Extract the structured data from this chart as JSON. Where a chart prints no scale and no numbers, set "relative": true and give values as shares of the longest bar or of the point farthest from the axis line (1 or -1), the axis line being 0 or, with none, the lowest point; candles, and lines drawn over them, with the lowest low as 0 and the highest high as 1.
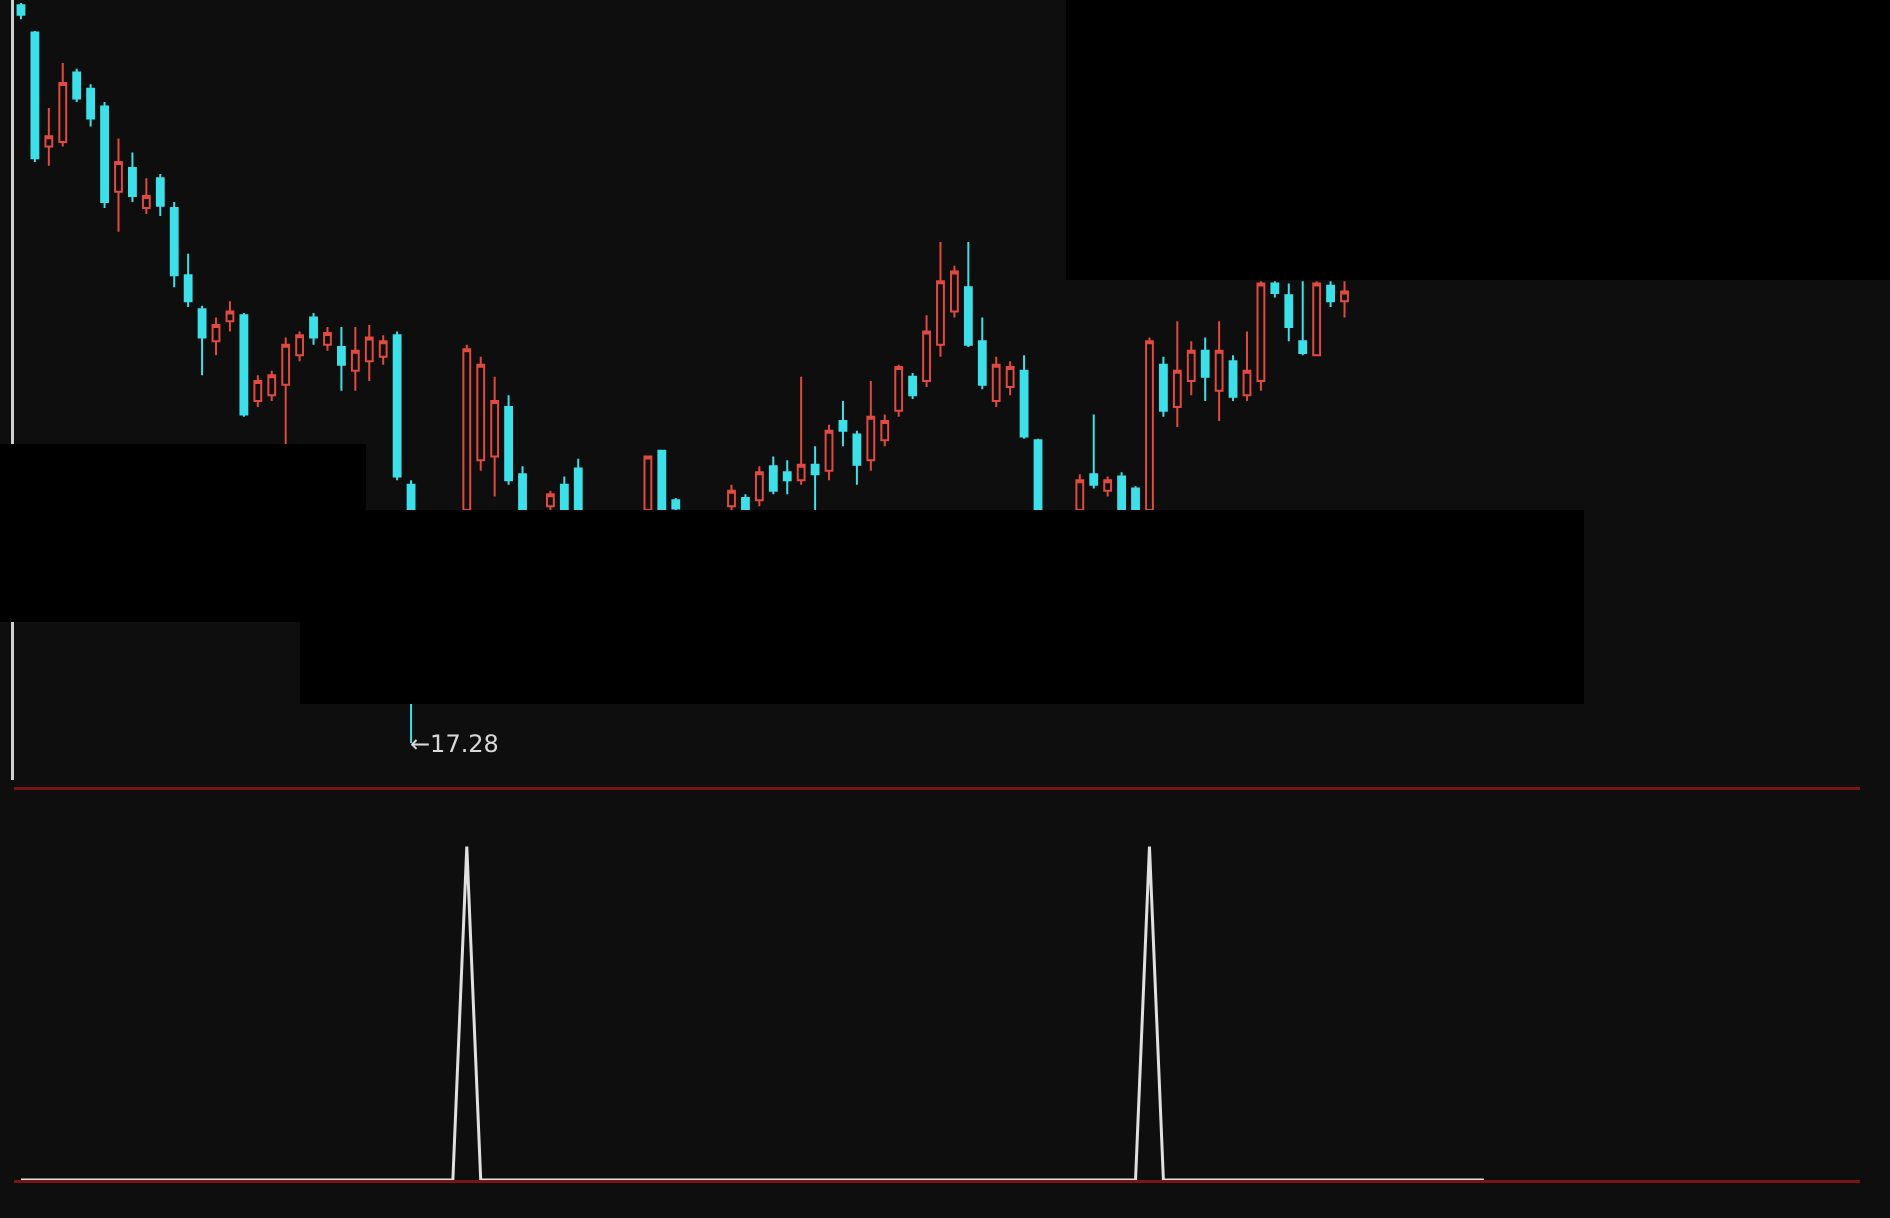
{
  "chart_data": [
    {
      "type": "candlestick",
      "relative": true,
      "categories": [
        null,
        null,
        null,
        null,
        null,
        null,
        null,
        null,
        null,
        null,
        null,
        null,
        null,
        null,
        null,
        null,
        null,
        null,
        null,
        null,
        null,
        null,
        null,
        null,
        null,
        null,
        null,
        null,
        null,
        null,
        null,
        null,
        null,
        null,
        null,
        null,
        null,
        null,
        null,
        null,
        null,
        null,
        null,
        null,
        null,
        null,
        null,
        null,
        null,
        null,
        null,
        null,
        null,
        null,
        null,
        null,
        null,
        null,
        null,
        null,
        null,
        null,
        null,
        null,
        null,
        null,
        null,
        null,
        null,
        null,
        null,
        null,
        null,
        null,
        null,
        null,
        null,
        null,
        null,
        null,
        null,
        null,
        null,
        null,
        null,
        null,
        null,
        null,
        null,
        null,
        null,
        null,
        null,
        null,
        null,
        null,
        null,
        null,
        null,
        null,
        null,
        null,
        null,
        null,
        null,
        null,
        null,
        null,
        null,
        null,
        null,
        null,
        null,
        null,
        null,
        null,
        null,
        null,
        null,
        null,
        null,
        null,
        null,
        null,
        null,
        null,
        null,
        null,
        null,
        null,
        null,
        null
      ],
      "ohlc": [
        [
          0.997,
          1,
          0.978,
          0.984
        ],
        [
          0.96,
          0.962,
          0.785,
          0.79
        ],
        [
          0.806,
          0.858,
          0.78,
          0.82
        ],
        [
          0.812,
          0.919,
          0.806,
          0.892
        ],
        [
          0.906,
          0.911,
          0.866,
          0.871
        ],
        [
          0.884,
          0.89,
          0.833,
          0.844
        ],
        [
          0.86,
          0.866,
          0.723,
          0.731
        ],
        [
          0.745,
          0.817,
          0.691,
          0.785
        ],
        [
          0.777,
          0.798,
          0.731,
          0.739
        ],
        [
          0.723,
          0.763,
          0.715,
          0.739
        ],
        [
          0.763,
          0.769,
          0.712,
          0.726
        ],
        [
          0.723,
          0.731,
          0.616,
          0.632
        ],
        [
          0.632,
          0.661,
          0.589,
          0.597
        ],
        [
          0.586,
          0.591,
          0.497,
          0.548
        ],
        [
          0.543,
          0.575,
          0.524,
          0.565
        ],
        [
          0.57,
          0.597,
          0.556,
          0.583
        ],
        [
          0.578,
          0.581,
          0.441,
          0.444
        ],
        [
          0.462,
          0.497,
          0.454,
          0.489
        ],
        [
          0.47,
          0.503,
          0.462,
          0.497
        ],
        [
          0.484,
          0.548,
          0.403,
          0.538
        ],
        [
          0.524,
          0.556,
          0.516,
          0.551
        ],
        [
          0.575,
          0.581,
          0.538,
          0.548
        ],
        [
          0.538,
          0.562,
          0.53,
          0.554
        ],
        [
          0.535,
          0.562,
          0.476,
          0.511
        ],
        [
          0.503,
          0.562,
          0.476,
          0.53
        ],
        [
          0.516,
          0.565,
          0.489,
          0.548
        ],
        [
          0.522,
          0.551,
          0.511,
          0.543
        ],
        [
          0.551,
          0.556,
          0.355,
          0.36
        ],
        [
          0.349,
          0.355,
          0,
          0.315
        ],
        null,
        null,
        null,
        [
          0.315,
          0.538,
          0.315,
          0.532
        ],
        [
          0.382,
          0.522,
          0.368,
          0.511
        ],
        [
          0.387,
          0.495,
          0.333,
          0.462
        ],
        [
          0.454,
          0.47,
          0.349,
          0.355
        ],
        [
          0.363,
          0.374,
          0.315,
          0.315
        ],
        null,
        [
          0.32,
          0.341,
          0.315,
          0.336
        ],
        [
          0.349,
          0.36,
          0.315,
          0.315
        ],
        [
          0.371,
          0.384,
          0.315,
          0.315
        ],
        null,
        null,
        null,
        null,
        [
          0.315,
          0.387,
          0.315,
          0.387
        ],
        [
          0.395,
          0.395,
          0.315,
          0.315
        ],
        [
          0.328,
          0.331,
          0.315,
          0.317
        ],
        null,
        null,
        null,
        [
          0.32,
          0.349,
          0.315,
          0.341
        ],
        [
          0.331,
          0.336,
          0.315,
          0.315
        ],
        [
          0.328,
          0.374,
          0.32,
          0.366
        ],
        [
          0.374,
          0.387,
          0.336,
          0.341
        ],
        [
          0.366,
          0.382,
          0.336,
          0.355
        ],
        [
          0.355,
          0.495,
          0.349,
          0.376
        ],
        [
          0.376,
          0.401,
          0.315,
          0.363
        ],
        [
          0.368,
          0.43,
          0.355,
          0.422
        ],
        [
          0.435,
          0.462,
          0.401,
          0.422
        ],
        [
          0.417,
          0.422,
          0.349,
          0.376
        ],
        [
          0.382,
          0.489,
          0.368,
          0.441
        ],
        [
          0.409,
          0.444,
          0.401,
          0.435
        ],
        [
          0.449,
          0.511,
          0.441,
          0.508
        ],
        [
          0.495,
          0.5,
          0.465,
          0.47
        ],
        [
          0.489,
          0.578,
          0.481,
          0.556
        ],
        [
          0.538,
          0.677,
          0.522,
          0.624
        ],
        [
          0.583,
          0.645,
          0.575,
          0.637
        ],
        [
          0.616,
          0.677,
          0.535,
          0.538
        ],
        [
          0.543,
          0.575,
          0.478,
          0.484
        ],
        [
          0.462,
          0.522,
          0.454,
          0.511
        ],
        [
          0.481,
          0.516,
          0.47,
          0.508
        ],
        [
          0.503,
          0.524,
          0.411,
          0.414
        ],
        [
          0.409,
          0.411,
          0.315,
          0.315
        ],
        null,
        null,
        [
          0.315,
          0.363,
          0.315,
          0.355
        ],
        [
          0.363,
          0.444,
          0.344,
          0.349
        ],
        [
          0.341,
          0.36,
          0.333,
          0.355
        ],
        [
          0.36,
          0.366,
          0.315,
          0.315
        ],
        [
          0.344,
          0.347,
          0.315,
          0.315
        ],
        [
          0.315,
          0.548,
          0.315,
          0.543
        ],
        [
          0.511,
          0.522,
          0.441,
          0.449
        ],
        [
          0.454,
          0.57,
          0.427,
          0.503
        ],
        [
          0.489,
          0.543,
          0.47,
          0.53
        ],
        [
          0.53,
          0.548,
          0.462,
          0.495
        ],
        [
          0.476,
          0.57,
          0.435,
          0.53
        ],
        [
          0.516,
          0.524,
          0.462,
          0.468
        ],
        [
          0.47,
          0.556,
          0.462,
          0.503
        ],
        [
          0.489,
          0.624,
          0.476,
          0.621
        ],
        [
          0.621,
          0.624,
          0.602,
          0.608
        ],
        [
          0.605,
          0.621,
          0.543,
          0.562
        ],
        [
          0.543,
          0.624,
          0.524,
          0.527
        ],
        [
          0.524,
          0.624,
          0.524,
          0.621
        ],
        [
          0.618,
          0.624,
          0.589,
          0.597
        ],
        [
          0.597,
          0.624,
          0.575,
          0.61
        ],
        null,
        null,
        null,
        null,
        null,
        null,
        null,
        null,
        null,
        null,
        null,
        null,
        null,
        null,
        null,
        null,
        null,
        null,
        null,
        null,
        null,
        null,
        null,
        null,
        null,
        null,
        null,
        null,
        null,
        null,
        null,
        null,
        null,
        null,
        null,
        null
      ],
      "colors": [
        "#3de0e8",
        "#3de0e8",
        "#e04a3f",
        "#e04a3f",
        "#3de0e8",
        "#3de0e8",
        "#3de0e8",
        "#e04a3f",
        "#3de0e8",
        "#e04a3f",
        "#3de0e8",
        "#3de0e8",
        "#3de0e8",
        "#3de0e8",
        "#e04a3f",
        "#e04a3f",
        "#3de0e8",
        "#e04a3f",
        "#e04a3f",
        "#e04a3f",
        "#e04a3f",
        "#3de0e8",
        "#e04a3f",
        "#3de0e8",
        "#e04a3f",
        "#e04a3f",
        "#e04a3f",
        "#3de0e8",
        "#3de0e8",
        null,
        null,
        null,
        "#e04a3f",
        "#e04a3f",
        "#e04a3f",
        "#3de0e8",
        "#3de0e8",
        null,
        "#e04a3f",
        "#3de0e8",
        "#3de0e8",
        null,
        null,
        null,
        null,
        "#e04a3f",
        "#3de0e8",
        "#3de0e8",
        null,
        null,
        null,
        "#e04a3f",
        "#3de0e8",
        "#e04a3f",
        "#3de0e8",
        "#3de0e8",
        "#e04a3f",
        "#3de0e8",
        "#e04a3f",
        "#3de0e8",
        "#3de0e8",
        "#e04a3f",
        "#e04a3f",
        "#e04a3f",
        "#3de0e8",
        "#e04a3f",
        "#e04a3f",
        "#e04a3f",
        "#3de0e8",
        "#3de0e8",
        "#e04a3f",
        "#e04a3f",
        "#3de0e8",
        "#3de0e8",
        null,
        null,
        "#e04a3f",
        "#3de0e8",
        "#e04a3f",
        "#3de0e8",
        "#3de0e8",
        "#e04a3f",
        "#3de0e8",
        "#e04a3f",
        "#e04a3f",
        "#3de0e8",
        "#e04a3f",
        "#3de0e8",
        "#e04a3f",
        "#e04a3f",
        "#3de0e8",
        "#3de0e8",
        "#3de0e8",
        "#e04a3f",
        "#3de0e8",
        "#e04a3f",
        null,
        null,
        null,
        null,
        null,
        null,
        null,
        null,
        null,
        null,
        null,
        null,
        null,
        null,
        null,
        null,
        null,
        null,
        null,
        null,
        null,
        null,
        null,
        null,
        null,
        null,
        null,
        null,
        null,
        null,
        null,
        null,
        null,
        null,
        null,
        null
      ],
      "annotations": [
        "←17.28"
      ]
    },
    {
      "type": "line",
      "relative": true,
      "color": "#e0e0e0",
      "categories": [
        null,
        null,
        null,
        null,
        null,
        null,
        null,
        null,
        null,
        null,
        null,
        null,
        null,
        null,
        null,
        null,
        null,
        null,
        null,
        null,
        null,
        null,
        null,
        null,
        null,
        null,
        null,
        null,
        null,
        null,
        null,
        null,
        null,
        null,
        null,
        null,
        null,
        null,
        null,
        null,
        null,
        null,
        null,
        null,
        null,
        null,
        null,
        null,
        null,
        null,
        null,
        null,
        null,
        null,
        null,
        null,
        null,
        null,
        null,
        null,
        null,
        null,
        null,
        null,
        null,
        null,
        null,
        null,
        null,
        null,
        null,
        null,
        null,
        null,
        null,
        null,
        null,
        null,
        null,
        null,
        null,
        null,
        null,
        null,
        null,
        null,
        null,
        null,
        null,
        null,
        null,
        null,
        null,
        null,
        null,
        null,
        null,
        null,
        null,
        null,
        null,
        null,
        null,
        null,
        null,
        null,
        null,
        null,
        null,
        null,
        null,
        null,
        null,
        null,
        null,
        null,
        null,
        null,
        null,
        null,
        null,
        null,
        null,
        null,
        null,
        null,
        null,
        null,
        null,
        null,
        null,
        null
      ],
      "values": [
        0,
        0,
        0,
        0,
        0,
        0,
        0,
        0,
        0,
        0,
        0,
        0,
        0,
        0,
        0,
        0,
        0,
        0,
        0,
        0,
        0,
        0,
        0,
        0,
        0,
        0,
        0,
        0,
        0,
        0,
        0,
        0,
        1,
        0,
        0,
        0,
        0,
        0,
        0,
        0,
        0,
        0,
        0,
        0,
        0,
        0,
        0,
        0,
        0,
        0,
        0,
        0,
        0,
        0,
        0,
        0,
        0,
        0,
        0,
        0,
        0,
        0,
        0,
        0,
        0,
        0,
        0,
        0,
        0,
        0,
        0,
        0,
        0,
        0,
        0,
        0,
        0,
        0,
        0,
        0,
        0,
        1,
        0,
        0,
        0,
        0,
        0,
        0,
        0,
        0,
        0,
        0,
        0,
        0,
        0,
        0,
        0,
        0,
        0,
        0,
        0,
        0,
        0,
        0,
        0,
        0,
        null,
        null,
        null,
        null,
        null,
        null,
        null,
        null,
        null,
        null,
        null,
        null,
        null,
        null,
        null,
        null,
        null,
        null,
        null,
        null,
        null,
        null,
        null,
        null,
        null,
        null
      ]
    }
  ]
}
